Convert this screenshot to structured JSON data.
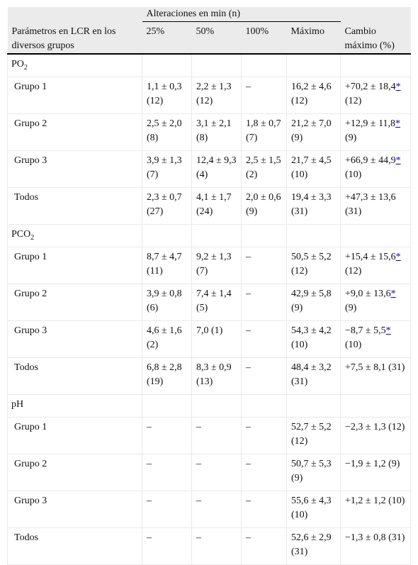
{
  "header": {
    "stub_label": "Parámetros en LCR en los diversos grupos",
    "group_label": "Alteraciones en min (n)",
    "columns": [
      "25%",
      "50%",
      "100%",
      "Máximo"
    ],
    "change_label": "Cambio máximo (%)"
  },
  "sections": [
    {
      "name": "PO",
      "sub": "2",
      "rows": [
        {
          "label": "Grupo 1",
          "c25": "1,1 ± 0,3 (12)",
          "c50": "2,2 ± 1,3 (12)",
          "c100": "–",
          "max": "16,2 ± 4,6 (12)",
          "chg_a": "+70,2 ± 18,4",
          "chg_star": "*",
          "chg_b": " (12)"
        },
        {
          "label": "Grupo 2",
          "c25": "2,5 ± 2,0 (8)",
          "c50": "3,1 ± 2,1 (8)",
          "c100": "1,8 ± 0,7 (7)",
          "max": "21,2 ± 7,0 (9)",
          "chg_a": "+12,9 ± 11,8",
          "chg_star": "*",
          "chg_b": " (9)"
        },
        {
          "label": "Grupo 3",
          "c25": "3,9 ± 1,3 (7)",
          "c50": "12,4 ± 9,3 (4)",
          "c100": "2,5 ± 1,5 (2)",
          "max": "21,7 ± 4,5 (10)",
          "chg_a": "+66,9 ± 44,9",
          "chg_star": "*",
          "chg_b": " (10)"
        },
        {
          "label": "Todos",
          "c25": "2,3 ± 0,7 (27)",
          "c50": "4,1 ± 1,7 (24)",
          "c100": "2,0 ± 0,6 (9)",
          "max": "19,4 ± 3,3 (31)",
          "chg_a": "+47,3 ± 13,6 (31)",
          "chg_star": "",
          "chg_b": ""
        }
      ]
    },
    {
      "name": "PCO",
      "sub": "2",
      "rows": [
        {
          "label": "Grupo 1",
          "c25": "8,7 ± 4,7 (11)",
          "c50": "9,2 ± 1,3 (7)",
          "c100": "–",
          "max": "50,5 ± 5,2 (12)",
          "chg_a": "+15,4 ± 15,6",
          "chg_star": "*",
          "chg_b": " (12)"
        },
        {
          "label": "Grupo 2",
          "c25": "3,9 ± 0,8 (6)",
          "c50": "7,4 ± 1,4 (5)",
          "c100": "–",
          "max": "42,9 ± 5,8 (9)",
          "chg_a": "+9,0 ± 13,6",
          "chg_star": "*",
          "chg_b": " (9)"
        },
        {
          "label": "Grupo 3",
          "c25": "4,6 ± 1,6 (2)",
          "c50": "7,0 (1)",
          "c100": "–",
          "max": "54,3 ± 4,2 (10)",
          "chg_a": "−8,7 ± 5,5",
          "chg_star": "*",
          "chg_b": " (10)"
        },
        {
          "label": "Todos",
          "c25": "6,8 ± 2,8 (19)",
          "c50": "8,3 ± 0,9 (13)",
          "c100": "–",
          "max": "48,4 ± 3,2 (31)",
          "chg_a": "+7,5 ± 8,1 (31)",
          "chg_star": "",
          "chg_b": ""
        }
      ]
    },
    {
      "name": "pH",
      "sub": "",
      "rows": [
        {
          "label": "Grupo 1",
          "c25": "–",
          "c50": "–",
          "c100": "–",
          "max": "52,7 ± 5,2 (12)",
          "chg_a": "−2,3 ± 1,3 (12)",
          "chg_star": "",
          "chg_b": ""
        },
        {
          "label": "Grupo 2",
          "c25": "–",
          "c50": "–",
          "c100": "–",
          "max": "50,7 ± 5,3 (9)",
          "chg_a": "−1,9 ± 1,2 (9)",
          "chg_star": "",
          "chg_b": ""
        },
        {
          "label": "Grupo 3",
          "c25": "–",
          "c50": "–",
          "c100": "–",
          "max": "55,6 ± 4,3 (10)",
          "chg_a": "+1,2 ± 1,2 (10)",
          "chg_star": "",
          "chg_b": ""
        },
        {
          "label": "Todos",
          "c25": "–",
          "c50": "–",
          "c100": "–",
          "max": "52,6 ± 2,9 (31)",
          "chg_a": "−1,3 ± 0,8 (31)",
          "chg_star": "",
          "chg_b": ""
        }
      ]
    }
  ]
}
